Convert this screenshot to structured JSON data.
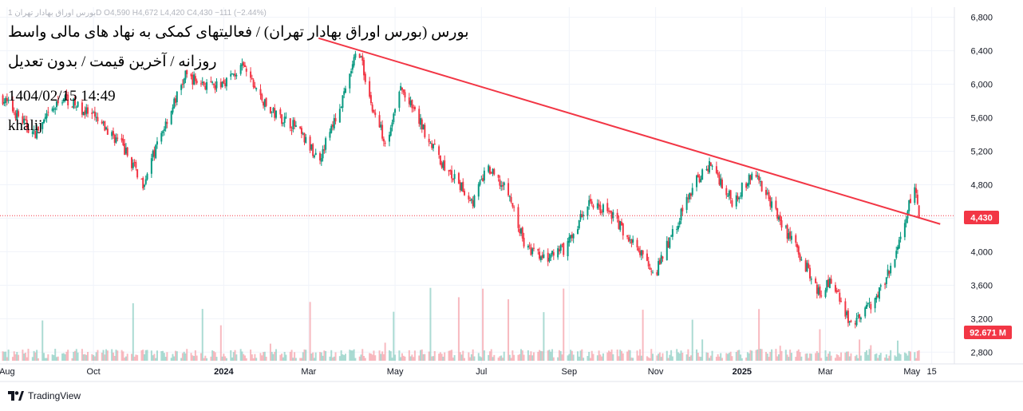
{
  "header": {
    "ohlc_line": "بورس اوراق بهادار تهران 1D  O4,590  H4,672  L4,420  C4,430  −111 (−2.44%)",
    "title_line": "بورس (بورس اوراق بهادار تهران) / فعالیتهای کمکی به نهاد های مالی واسط",
    "subtitle_line": "روزانه / آخرین قیمت / بدون تعدیل",
    "timestamp": "1404/02/15 14:49",
    "author": "khalij"
  },
  "footer": {
    "brand": "TradingView"
  },
  "colors": {
    "up": "#089981",
    "down": "#f23645",
    "trendline": "#f23645",
    "grid": "#f0f3fa",
    "price_line": "#f23645",
    "axis_text": "#131722"
  },
  "chart_data": {
    "type": "candlestick",
    "timeframe": "1D",
    "y_axis": {
      "ticks": [
        2800,
        3200,
        3600,
        4000,
        4400,
        4800,
        5200,
        5600,
        6000,
        6400,
        6800
      ],
      "tick_labels": [
        "2,800",
        "3,200",
        "3,600",
        "4,000",
        "4,400",
        "4,800",
        "5,200",
        "5,600",
        "6,000",
        "6,400",
        "6,800"
      ],
      "range": [
        2660,
        6920
      ]
    },
    "x_axis": {
      "labels": [
        {
          "text": "Aug",
          "date": "2023-08-01"
        },
        {
          "text": "Oct",
          "date": "2023-10-01"
        },
        {
          "text": "2024",
          "date": "2024-01-01",
          "bold": true
        },
        {
          "text": "Mar",
          "date": "2024-03-01"
        },
        {
          "text": "May",
          "date": "2024-05-01"
        },
        {
          "text": "Jul",
          "date": "2024-07-01"
        },
        {
          "text": "Sep",
          "date": "2024-09-01"
        },
        {
          "text": "Nov",
          "date": "2024-11-01"
        },
        {
          "text": "2025",
          "date": "2025-01-01",
          "bold": true
        },
        {
          "text": "Mar",
          "date": "2025-03-01"
        },
        {
          "text": "May",
          "date": "2025-05-01"
        },
        {
          "text": "15",
          "date": "2025-05-15"
        }
      ],
      "range": [
        "2023-07-27",
        "2025-05-31"
      ]
    },
    "last_price": {
      "value": 4430,
      "label": "4,430"
    },
    "last_volume": {
      "label": "92.671 M"
    },
    "last_bar": {
      "open": 4590,
      "high": 4672,
      "low": 4420,
      "close": 4430,
      "change": -111,
      "change_pct": -2.44
    },
    "price_path": [
      {
        "date": "2023-07-28",
        "price": 5850
      },
      {
        "date": "2023-08-20",
        "price": 5400
      },
      {
        "date": "2023-09-10",
        "price": 5850
      },
      {
        "date": "2023-10-01",
        "price": 5600
      },
      {
        "date": "2023-10-20",
        "price": 5300
      },
      {
        "date": "2023-11-05",
        "price": 4820
      },
      {
        "date": "2023-11-20",
        "price": 5500
      },
      {
        "date": "2023-12-05",
        "price": 6100
      },
      {
        "date": "2023-12-25",
        "price": 5950
      },
      {
        "date": "2024-01-15",
        "price": 6200
      },
      {
        "date": "2024-02-01",
        "price": 5700
      },
      {
        "date": "2024-02-20",
        "price": 5500
      },
      {
        "date": "2024-03-08",
        "price": 5100
      },
      {
        "date": "2024-03-25",
        "price": 5800
      },
      {
        "date": "2024-04-05",
        "price": 6450
      },
      {
        "date": "2024-04-15",
        "price": 5700
      },
      {
        "date": "2024-04-25",
        "price": 5300
      },
      {
        "date": "2024-05-05",
        "price": 5950
      },
      {
        "date": "2024-05-20",
        "price": 5500
      },
      {
        "date": "2024-06-05",
        "price": 5000
      },
      {
        "date": "2024-06-25",
        "price": 4600
      },
      {
        "date": "2024-07-05",
        "price": 5000
      },
      {
        "date": "2024-07-20",
        "price": 4700
      },
      {
        "date": "2024-08-01",
        "price": 4050
      },
      {
        "date": "2024-08-15",
        "price": 3900
      },
      {
        "date": "2024-08-30",
        "price": 4050
      },
      {
        "date": "2024-09-15",
        "price": 4600
      },
      {
        "date": "2024-10-01",
        "price": 4450
      },
      {
        "date": "2024-10-20",
        "price": 4000
      },
      {
        "date": "2024-11-01",
        "price": 3750
      },
      {
        "date": "2024-11-15",
        "price": 4300
      },
      {
        "date": "2024-11-28",
        "price": 4800
      },
      {
        "date": "2024-12-10",
        "price": 5050
      },
      {
        "date": "2024-12-25",
        "price": 4600
      },
      {
        "date": "2025-01-10",
        "price": 4950
      },
      {
        "date": "2025-01-25",
        "price": 4450
      },
      {
        "date": "2025-02-10",
        "price": 4000
      },
      {
        "date": "2025-02-25",
        "price": 3500
      },
      {
        "date": "2025-03-05",
        "price": 3650
      },
      {
        "date": "2025-03-20",
        "price": 3100
      },
      {
        "date": "2025-04-01",
        "price": 3350
      },
      {
        "date": "2025-04-15",
        "price": 3750
      },
      {
        "date": "2025-04-25",
        "price": 4300
      },
      {
        "date": "2025-05-03",
        "price": 4800
      },
      {
        "date": "2025-05-06",
        "price": 4430
      }
    ],
    "trendline": {
      "start": {
        "date": "2024-03-08",
        "price": 6550
      },
      "end": {
        "date": "2025-05-21",
        "price": 4330
      }
    }
  }
}
